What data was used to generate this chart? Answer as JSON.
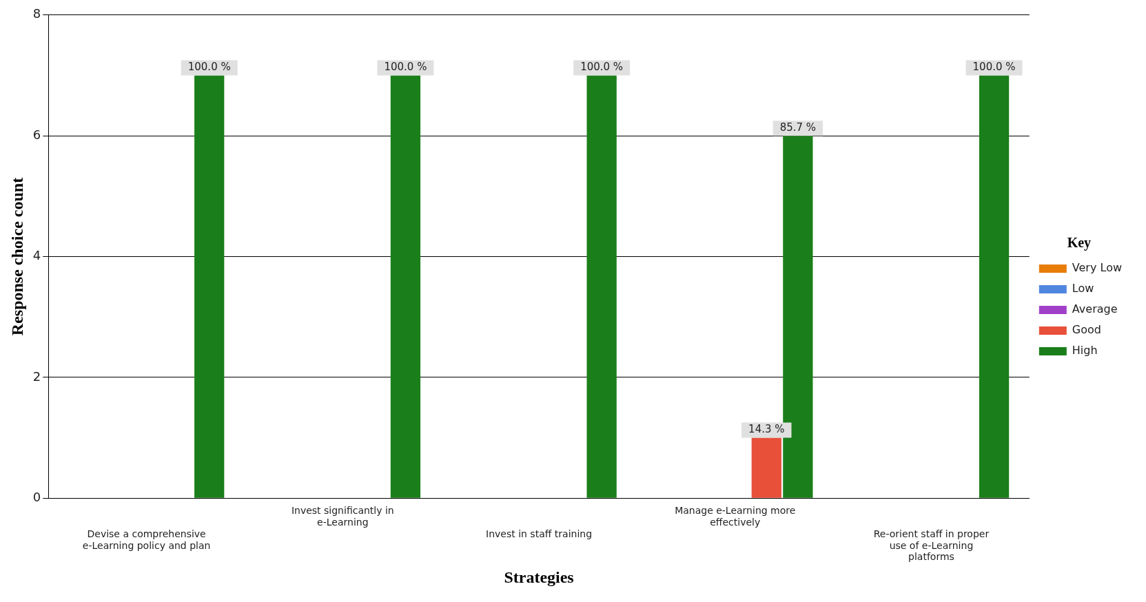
{
  "chart_data": {
    "type": "bar",
    "xlabel": "Strategies",
    "ylabel": "Response choice count",
    "legend_title": "Key",
    "legend": "right",
    "grid": "y",
    "categories": [
      "Devise a comprehensive e-Learning policy and plan",
      "Invest significantly in e-Learning",
      "Invest in staff training",
      "Manage e-Learning more effectively",
      "Re-orient staff in proper use of e-Learning platforms"
    ],
    "ylim": [
      0,
      8
    ],
    "yticks": [
      0,
      2,
      4,
      6,
      8
    ],
    "series": [
      {
        "name": "Very Low",
        "color": "#e87d0a",
        "values": [
          0,
          0,
          0,
          0,
          0
        ]
      },
      {
        "name": "Low",
        "color": "#4f86e0",
        "values": [
          0,
          0,
          0,
          0,
          0
        ]
      },
      {
        "name": "Average",
        "color": "#a040c8",
        "values": [
          0,
          0,
          0,
          0,
          0
        ]
      },
      {
        "name": "Good",
        "color": "#e8503a",
        "values": [
          0,
          0,
          0,
          1,
          0
        ]
      },
      {
        "name": "High",
        "color": "#1a7f1a",
        "values": [
          7,
          7,
          7,
          6,
          7
        ]
      }
    ],
    "annotations": [
      "100.0 %",
      "100.0 %",
      "100.0 %",
      "14.3 %",
      "85.7 %",
      "100.0 %"
    ]
  }
}
